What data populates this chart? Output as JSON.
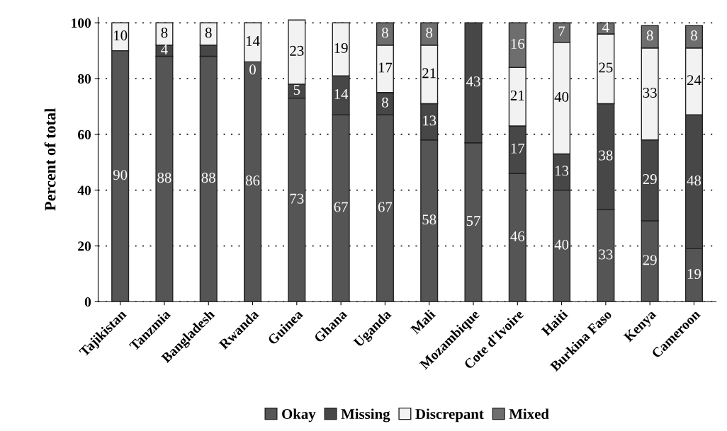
{
  "chart_data": {
    "type": "bar",
    "stacked": true,
    "ylabel": "Percent of total",
    "categories": [
      "Tajikistan",
      "Tanzmia",
      "Bangladesh",
      "Rwanda",
      "Guinea",
      "Ghana",
      "Uganda",
      "Mali",
      "Mozambique",
      "Cote d'Ivoire",
      "Haiti",
      "Burkina Faso",
      "Kenya",
      "Cameroon"
    ],
    "series": [
      {
        "name": "Okay",
        "color": "#555555",
        "values": [
          90,
          88,
          88,
          86,
          73,
          67,
          67,
          58,
          57,
          46,
          40,
          33,
          29,
          19
        ],
        "value_labels": [
          "90",
          "88",
          "88",
          "86",
          "73",
          "67",
          "67",
          "58",
          "57",
          "46",
          "40",
          "33",
          "29",
          "19"
        ]
      },
      {
        "name": "Missing",
        "color": "#474747",
        "values": [
          0,
          4,
          4,
          0,
          5,
          14,
          8,
          13,
          43,
          17,
          13,
          38,
          29,
          48
        ],
        "value_labels": [
          null,
          "4",
          null,
          "0",
          "5",
          "14",
          "8",
          "13",
          "43",
          "17",
          "13",
          "38",
          "29",
          "48"
        ]
      },
      {
        "name": "Discrepant",
        "color": "#f2f2f2",
        "values": [
          10,
          8,
          8,
          14,
          23,
          19,
          17,
          21,
          0,
          21,
          40,
          25,
          33,
          24
        ],
        "value_labels": [
          "10",
          "8",
          "8",
          "14",
          "23",
          "19",
          "17",
          "21",
          null,
          "21",
          "40",
          "25",
          "33",
          "24"
        ]
      },
      {
        "name": "Mixed",
        "color": "#6e6e6e",
        "values": [
          0,
          0,
          0,
          0,
          0,
          0,
          8,
          8,
          0,
          16,
          7,
          4,
          8,
          8
        ],
        "value_labels": [
          null,
          null,
          null,
          null,
          null,
          null,
          "8",
          "8",
          null,
          "16",
          "7",
          "4",
          "8",
          "8"
        ]
      }
    ],
    "ylim": [
      0,
      102
    ],
    "yticks": [
      0,
      20,
      40,
      60,
      80,
      100
    ],
    "grid": "y",
    "legend": "bottom"
  }
}
